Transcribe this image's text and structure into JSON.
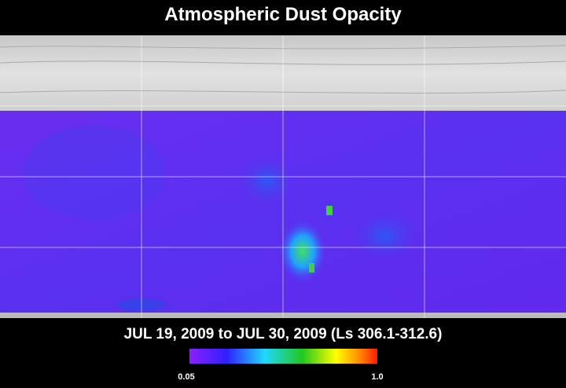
{
  "header": {
    "title": "Atmospheric Dust Opacity"
  },
  "map": {
    "subtitle": "JUL 19, 2009 to JUL 30, 2009 (Ls 306.1-312.6)"
  },
  "legend": {
    "min_label": "0.05",
    "max_label": "1.0"
  }
}
